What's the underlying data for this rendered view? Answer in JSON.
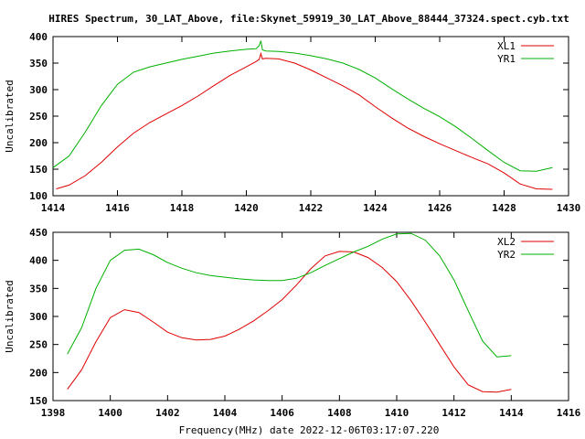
{
  "title": "HIRES Spectrum, 30_LAT_Above, file:Skynet_59919_30_LAT_Above_88444_37324.spect.cyb.txt",
  "xlabel": "Frequency(MHz) date 2022-12-06T03:17:07.220",
  "colors": {
    "red": "#e00000",
    "green": "#00b000",
    "frame": "#000000"
  },
  "chart_data": [
    {
      "type": "line",
      "title": "",
      "xlabel": "",
      "ylabel": "Uncalibrated",
      "xlim": [
        1414,
        1430
      ],
      "ylim": [
        100,
        400
      ],
      "xticks": [
        1414,
        1416,
        1418,
        1420,
        1422,
        1424,
        1426,
        1428,
        1430
      ],
      "yticks": [
        100,
        150,
        200,
        250,
        300,
        350,
        400
      ],
      "grid": false,
      "legend": "top-right",
      "series": [
        {
          "name": "XL1",
          "color": "#e00000",
          "x": [
            1414.1,
            1414.5,
            1415,
            1415.5,
            1416,
            1416.5,
            1417,
            1417.5,
            1418,
            1418.5,
            1419,
            1419.5,
            1420,
            1420.3,
            1420.4,
            1420.45,
            1420.5,
            1420.6,
            1421,
            1421.5,
            1422,
            1422.5,
            1423,
            1423.5,
            1424,
            1424.5,
            1425,
            1425.5,
            1426,
            1426.5,
            1427,
            1427.5,
            1428,
            1428.5,
            1429,
            1429.5
          ],
          "values": [
            113,
            120,
            138,
            163,
            192,
            218,
            238,
            254,
            270,
            288,
            308,
            327,
            343,
            353,
            357,
            368,
            358,
            359,
            358,
            350,
            337,
            322,
            307,
            290,
            268,
            247,
            228,
            212,
            198,
            185,
            172,
            160,
            143,
            122,
            113,
            112
          ]
        },
        {
          "name": "YR1",
          "color": "#00b000",
          "x": [
            1414,
            1414.5,
            1415,
            1415.5,
            1416,
            1416.5,
            1417,
            1417.5,
            1418,
            1418.5,
            1419,
            1419.5,
            1420,
            1420.3,
            1420.4,
            1420.45,
            1420.5,
            1420.6,
            1421,
            1421.5,
            1422,
            1422.5,
            1423,
            1423.5,
            1424,
            1424.5,
            1425,
            1425.5,
            1426,
            1426.5,
            1427,
            1427.5,
            1428,
            1428.5,
            1429,
            1429.5
          ],
          "values": [
            153,
            175,
            220,
            270,
            310,
            333,
            343,
            350,
            357,
            363,
            369,
            373,
            376,
            377,
            383,
            392,
            375,
            373,
            372,
            369,
            364,
            358,
            350,
            338,
            322,
            302,
            283,
            265,
            249,
            230,
            208,
            185,
            163,
            147,
            146,
            153
          ]
        }
      ]
    },
    {
      "type": "line",
      "title": "",
      "xlabel": "Frequency(MHz) date 2022-12-06T03:17:07.220",
      "ylabel": "Uncalibrated",
      "xlim": [
        1398,
        1416
      ],
      "ylim": [
        150,
        450
      ],
      "xticks": [
        1398,
        1400,
        1402,
        1404,
        1406,
        1408,
        1410,
        1412,
        1414,
        1416
      ],
      "yticks": [
        150,
        200,
        250,
        300,
        350,
        400,
        450
      ],
      "grid": false,
      "legend": "top-right",
      "series": [
        {
          "name": "XL2",
          "color": "#e00000",
          "x": [
            1398.5,
            1399,
            1399.5,
            1400,
            1400.5,
            1401,
            1401.5,
            1402,
            1402.5,
            1403,
            1403.5,
            1404,
            1404.5,
            1405,
            1405.5,
            1406,
            1406.5,
            1407,
            1407.5,
            1408,
            1408.5,
            1409,
            1409.5,
            1410,
            1410.5,
            1411,
            1411.5,
            1412,
            1412.5,
            1413,
            1413.5,
            1414
          ],
          "values": [
            170,
            205,
            255,
            298,
            312,
            307,
            290,
            272,
            262,
            258,
            259,
            265,
            277,
            292,
            310,
            330,
            356,
            385,
            408,
            416,
            415,
            405,
            387,
            362,
            328,
            290,
            250,
            210,
            178,
            166,
            165,
            170
          ]
        },
        {
          "name": "YR2",
          "color": "#00b000",
          "x": [
            1398.5,
            1399,
            1399.5,
            1400,
            1400.5,
            1401,
            1401.5,
            1402,
            1402.5,
            1403,
            1403.5,
            1404,
            1404.5,
            1405,
            1405.5,
            1406,
            1406.5,
            1407,
            1407.5,
            1408,
            1408.5,
            1409,
            1409.5,
            1410,
            1410.5,
            1411,
            1411.5,
            1412,
            1412.5,
            1413,
            1413.5,
            1414
          ],
          "values": [
            233,
            280,
            350,
            400,
            418,
            420,
            410,
            396,
            386,
            378,
            373,
            370,
            367,
            365,
            364,
            364,
            368,
            378,
            391,
            403,
            415,
            425,
            438,
            447,
            448,
            436,
            408,
            365,
            310,
            256,
            228,
            230
          ]
        }
      ]
    }
  ]
}
